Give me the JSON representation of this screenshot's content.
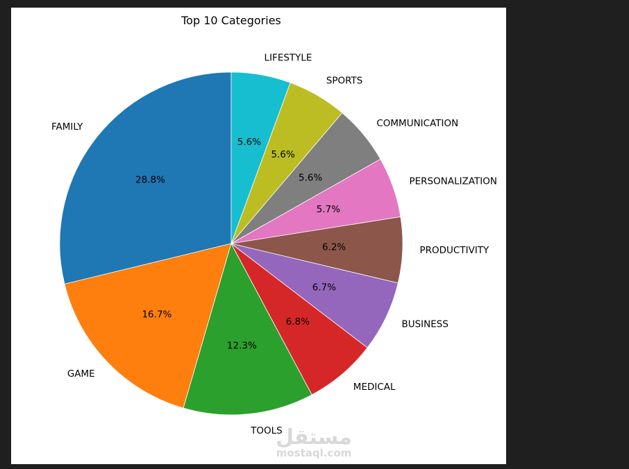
{
  "chart_data": {
    "type": "pie",
    "title": "Top 10 Categories",
    "start_angle_deg": 90,
    "direction": "counterclockwise",
    "slices": [
      {
        "label": "FAMILY",
        "value": 28.8,
        "pct_text": "28.8%",
        "color": "#1f77b4"
      },
      {
        "label": "GAME",
        "value": 16.7,
        "pct_text": "16.7%",
        "color": "#ff7f0e"
      },
      {
        "label": "TOOLS",
        "value": 12.3,
        "pct_text": "12.3%",
        "color": "#2ca02c"
      },
      {
        "label": "MEDICAL",
        "value": 6.8,
        "pct_text": "6.8%",
        "color": "#d62728"
      },
      {
        "label": "BUSINESS",
        "value": 6.7,
        "pct_text": "6.7%",
        "color": "#9467bd"
      },
      {
        "label": "PRODUCTIVITY",
        "value": 6.2,
        "pct_text": "6.2%",
        "color": "#8c564b"
      },
      {
        "label": "PERSONALIZATION",
        "value": 5.7,
        "pct_text": "5.7%",
        "color": "#e377c2"
      },
      {
        "label": "COMMUNICATION",
        "value": 5.6,
        "pct_text": "5.6%",
        "color": "#7f7f7f"
      },
      {
        "label": "SPORTS",
        "value": 5.6,
        "pct_text": "5.6%",
        "color": "#bcbd22"
      },
      {
        "label": "LIFESTYLE",
        "value": 5.6,
        "pct_text": "5.6%",
        "color": "#17becf"
      }
    ]
  },
  "watermark": {
    "arabic": "مستقل",
    "latin": "mostaql.com"
  }
}
